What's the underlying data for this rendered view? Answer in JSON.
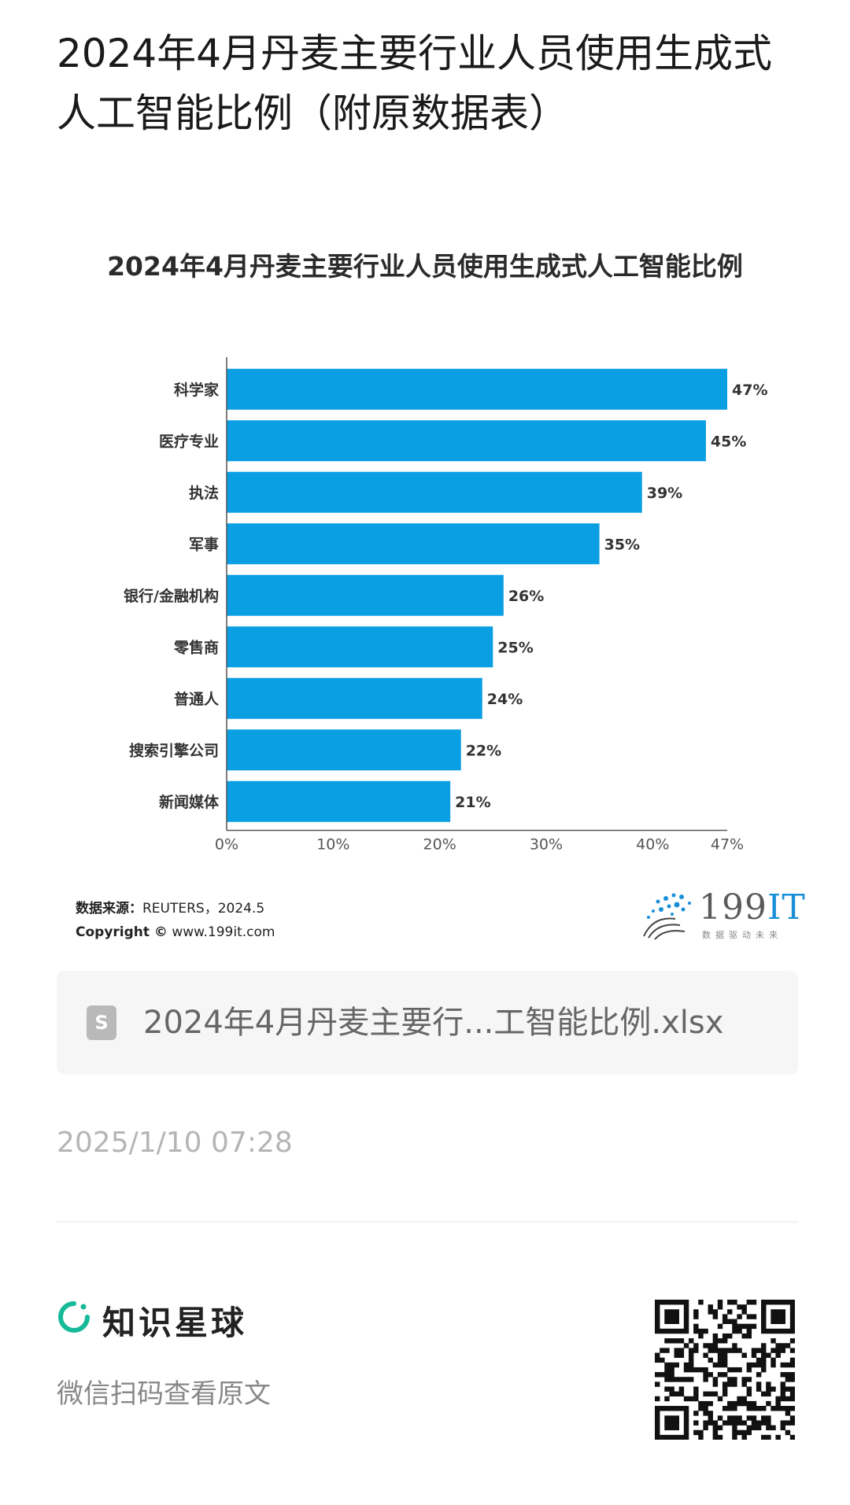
{
  "page_title": "2024年4月丹麦主要行业人员使用生成式人工智能比例（附原数据表）",
  "chart_data": {
    "type": "bar",
    "orientation": "horizontal",
    "title": "2024年4月丹麦主要行业人员使用生成式人工智能比例",
    "categories": [
      "科学家",
      "医疗专业",
      "执法",
      "军事",
      "银行/金融机构",
      "零售商",
      "普通人",
      "搜索引擎公司",
      "新闻媒体"
    ],
    "values": [
      47,
      45,
      39,
      35,
      26,
      25,
      24,
      22,
      21
    ],
    "value_labels": [
      "47%",
      "45%",
      "39%",
      "35%",
      "26%",
      "25%",
      "24%",
      "22%",
      "21%"
    ],
    "x_ticks": [
      "0%",
      "10%",
      "20%",
      "30%",
      "40%",
      "47%"
    ],
    "x_tick_values": [
      0,
      10,
      20,
      30,
      40,
      47
    ],
    "xlim": [
      0,
      47
    ],
    "bar_color": "#0a9fe3",
    "grid": false
  },
  "source": {
    "label": "数据来源：",
    "value": "REUTERS，2024.5",
    "copyright_label": "Copyright ©",
    "copyright_value": "www.199it.com"
  },
  "logo": {
    "name": "199",
    "accent": "IT",
    "tagline": "数据驱动未来"
  },
  "attachment": {
    "icon": "spreadsheet-icon",
    "icon_glyph": "S",
    "filename": "2024年4月丹麦主要行...工智能比例.xlsx"
  },
  "timestamp": "2025/1/10 07:28",
  "footer": {
    "brand_name": "知识星球",
    "scan_hint": "微信扫码查看原文",
    "brand_color": "#16b998"
  }
}
